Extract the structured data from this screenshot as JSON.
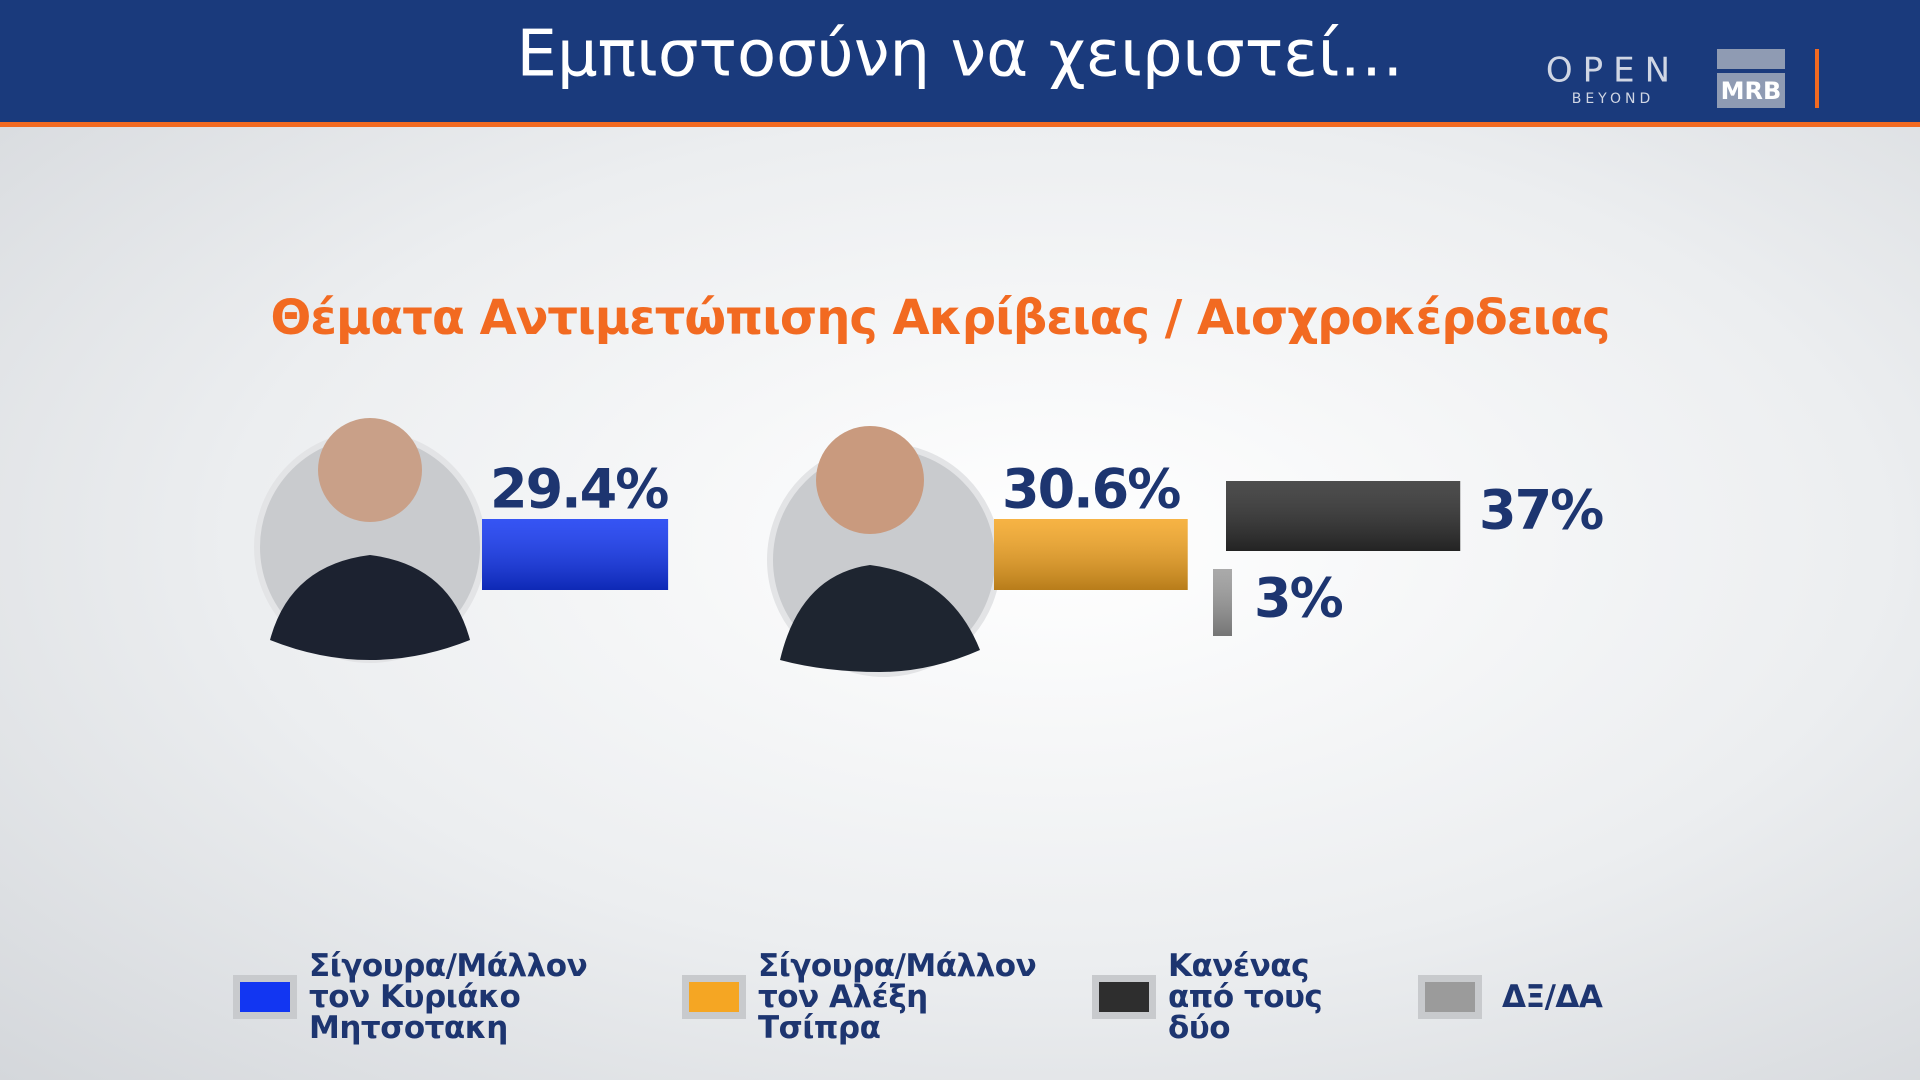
{
  "header": {
    "title": "Εμπιστοσύνη να χειριστεί…"
  },
  "logos": {
    "open": "OPEN",
    "open_sub": "BEYOND",
    "mrb": "MRB"
  },
  "chart_data": {
    "type": "bar",
    "subtitle": "Θέματα Αντιμετώπισης Ακρίβειας / Αισχροκέρδειας",
    "categories": [
      "Σίγουρα/Μάλλον τον Κυριάκο Μητσοτακη",
      "Σίγουρα/Μάλλον τον Αλέξη Τσίπρα",
      "Κανένας από τους δύο",
      "ΔΞ/ΔΑ"
    ],
    "values": [
      29.4,
      30.6,
      37,
      3
    ],
    "value_labels": [
      "29.4%",
      "30.6%",
      "37%",
      "3%"
    ],
    "colors": [
      "#1236f2",
      "#f5a623",
      "#2e2e2e",
      "#9b9b9b"
    ]
  }
}
